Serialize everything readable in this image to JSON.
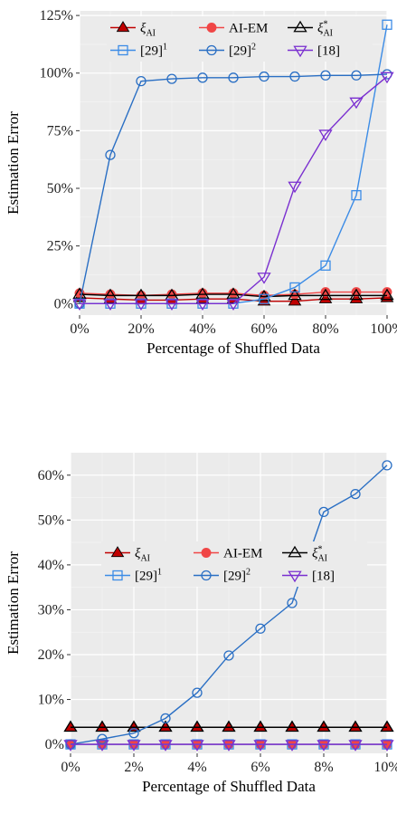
{
  "colors": {
    "panel": "#ebebeb",
    "grid_major": "#ffffff",
    "xi_ai": "#c00000",
    "ai_em": "#f04646",
    "xi_ai_star": "#000000",
    "ref29_1": "#3c8ce6",
    "ref29_2": "#2a6fc4",
    "ref18": "#7a2fd0"
  },
  "chart_data": [
    {
      "type": "line",
      "xlabel": "Percentage of Shuffled Data",
      "ylabel": "Estimation Error",
      "x": [
        0,
        10,
        20,
        30,
        40,
        50,
        60,
        70,
        80,
        90,
        100
      ],
      "xlim": [
        0,
        100
      ],
      "ylim": [
        -5,
        127
      ],
      "xticks": [
        0,
        20,
        40,
        60,
        80,
        100
      ],
      "yticks": [
        0,
        25,
        50,
        75,
        100,
        125
      ],
      "xtick_labels": [
        "0%",
        "20%",
        "40%",
        "60%",
        "80%",
        "100%"
      ],
      "ytick_labels": [
        "0%",
        "25%",
        "50%",
        "75%",
        "100%",
        "125%"
      ],
      "grid": true,
      "legend_position": "top",
      "series": [
        {
          "name": "ξAI",
          "key": "xi_ai",
          "marker": "triangle-up-filled",
          "values": [
            2.5,
            2.0,
            1.5,
            1.5,
            2.0,
            2.0,
            1.0,
            1.0,
            2.0,
            2.0,
            2.5
          ]
        },
        {
          "name": "AI-EM",
          "key": "ai_em",
          "marker": "circle-filled",
          "values": [
            4.5,
            4.0,
            3.5,
            4.0,
            4.5,
            4.5,
            3.5,
            4.0,
            5.0,
            5.0,
            5.0
          ]
        },
        {
          "name": "ξ*AI",
          "key": "xi_ai_star",
          "marker": "triangle-up-open",
          "values": [
            4.0,
            3.5,
            3.5,
            3.5,
            4.0,
            4.0,
            3.0,
            3.5,
            3.5,
            3.5,
            3.5
          ]
        },
        {
          "name": "[29]1",
          "key": "ref29_1",
          "marker": "square-open",
          "values": [
            0,
            0,
            0,
            0,
            0,
            0,
            2,
            7,
            16.5,
            47,
            121
          ]
        },
        {
          "name": "[29]2",
          "key": "ref29_2",
          "marker": "circle-open",
          "values": [
            0,
            64.5,
            96.5,
            97.5,
            98,
            98,
            98.5,
            98.5,
            99,
            99,
            99.5
          ]
        },
        {
          "name": "[18]",
          "key": "ref18",
          "marker": "triangle-down-open",
          "values": [
            0,
            0,
            0,
            0,
            0,
            0,
            11.5,
            51,
            73.5,
            87.5,
            98.5
          ]
        }
      ]
    },
    {
      "type": "line",
      "xlabel": "Percentage of Shuffled Data",
      "ylabel": "Estimation Error",
      "x": [
        0,
        1,
        2,
        3,
        4,
        5,
        6,
        7,
        8,
        9,
        10
      ],
      "xlim": [
        0,
        10
      ],
      "ylim": [
        -2,
        65
      ],
      "xticks": [
        0,
        2,
        4,
        6,
        8,
        10
      ],
      "yticks": [
        0,
        10,
        20,
        30,
        40,
        50,
        60
      ],
      "xtick_labels": [
        "0%",
        "2%",
        "4%",
        "6%",
        "8%",
        "10%"
      ],
      "ytick_labels": [
        "0%",
        "10%",
        "20%",
        "30%",
        "40%",
        "50%",
        "60%"
      ],
      "grid": true,
      "legend_position": "center-left",
      "series": [
        {
          "name": "ξAI",
          "key": "xi_ai",
          "marker": "triangle-up-filled",
          "values": [
            3.8,
            3.8,
            3.8,
            3.8,
            3.8,
            3.8,
            3.8,
            3.8,
            3.8,
            3.8,
            3.8
          ]
        },
        {
          "name": "AI-EM",
          "key": "ai_em",
          "marker": "circle-filled",
          "values": [
            0,
            0,
            0,
            0,
            0,
            0,
            0,
            0,
            0,
            0,
            0
          ]
        },
        {
          "name": "ξ*AI",
          "key": "xi_ai_star",
          "marker": "triangle-up-open",
          "values": [
            3.8,
            3.8,
            3.8,
            3.8,
            3.8,
            3.8,
            3.8,
            3.8,
            3.8,
            3.8,
            3.8
          ]
        },
        {
          "name": "[29]1",
          "key": "ref29_1",
          "marker": "square-open",
          "values": [
            0,
            0,
            0,
            0,
            0,
            0,
            0,
            0,
            0,
            0,
            0
          ]
        },
        {
          "name": "[29]2",
          "key": "ref29_2",
          "marker": "circle-open",
          "values": [
            0,
            1.2,
            2.5,
            5.8,
            11.5,
            19.8,
            25.8,
            31.5,
            51.8,
            55.8,
            62.2
          ]
        },
        {
          "name": "[18]",
          "key": "ref18",
          "marker": "triangle-down-open",
          "values": [
            0,
            0,
            0,
            0,
            0,
            0,
            0,
            0,
            0,
            0,
            0
          ]
        }
      ]
    }
  ]
}
